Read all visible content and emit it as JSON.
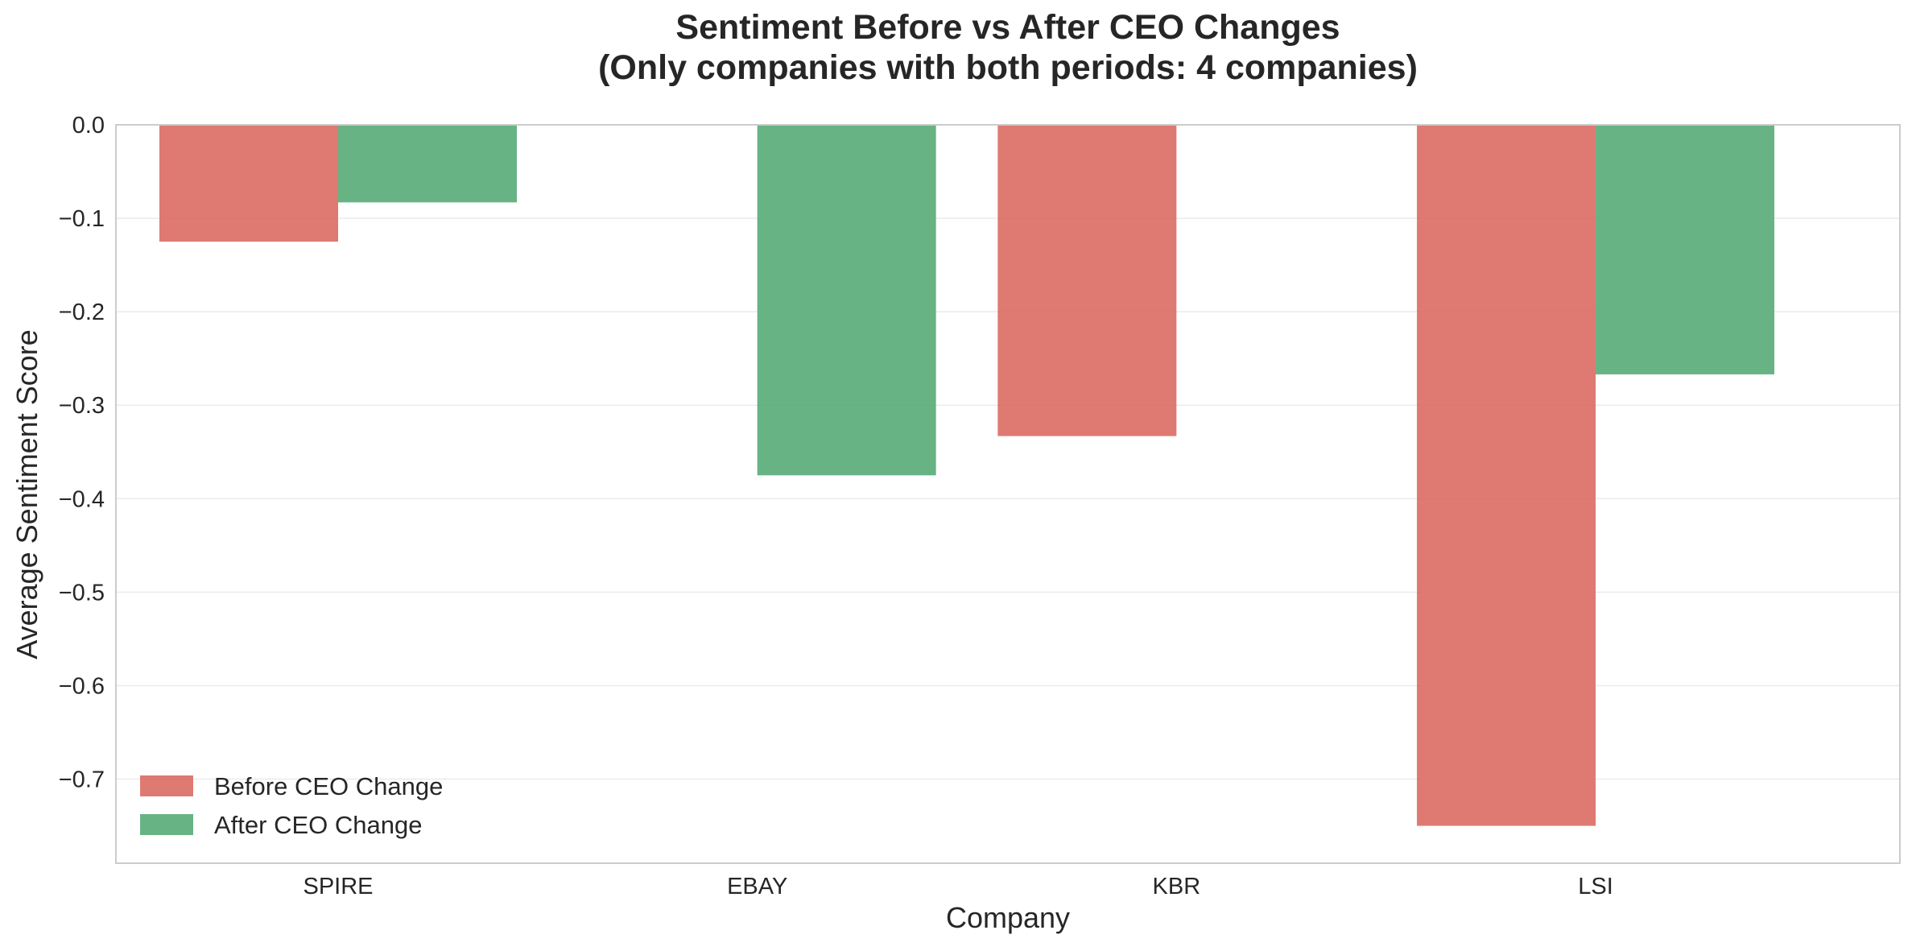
{
  "chart_data": {
    "type": "bar",
    "title": "Sentiment Before vs After CEO Changes",
    "subtitle": "(Only companies with both periods: 4 companies)",
    "xlabel": "Company",
    "ylabel": "Average Sentiment Score",
    "categories": [
      "SPIRE",
      "EBAY",
      "KBR",
      "LSI"
    ],
    "series": [
      {
        "name": "Before CEO Change",
        "color": "#d9685e",
        "values": [
          -0.125,
          0,
          -0.333,
          -0.75
        ]
      },
      {
        "name": "After CEO Change",
        "color": "#52a873",
        "values": [
          -0.083,
          -0.375,
          0,
          -0.267
        ]
      }
    ],
    "ylim": [
      -0.79,
      0.0
    ],
    "yticks": [
      0.0,
      -0.1,
      -0.2,
      -0.3,
      -0.4,
      -0.5,
      -0.6,
      -0.7
    ],
    "ytick_labels": [
      "0.0",
      "−0.1",
      "−0.2",
      "−0.3",
      "−0.4",
      "−0.5",
      "−0.6",
      "−0.7"
    ],
    "grid": "horizontal",
    "legend_position": "lower-left"
  }
}
